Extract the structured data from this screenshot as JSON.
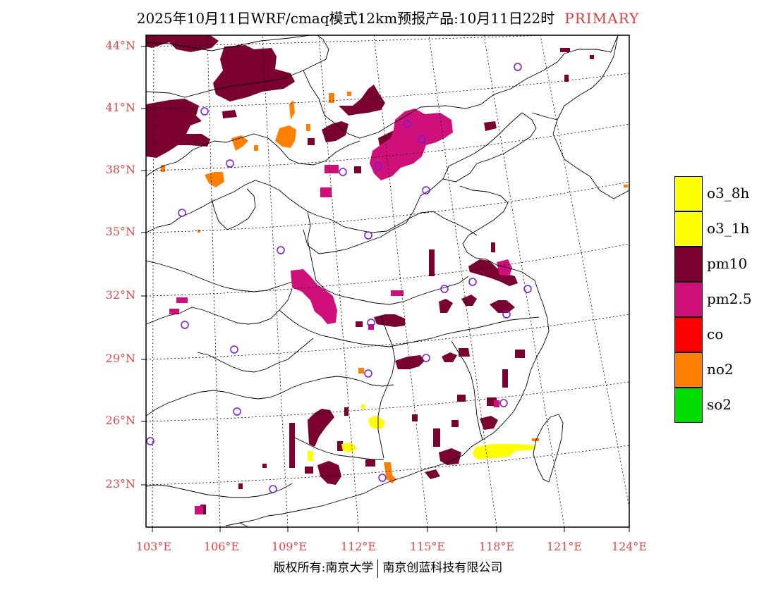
{
  "title": {
    "main": "2025年10月11日WRF/cmaq模式12km预报产品:10月11日22时",
    "tag": "PRIMARY"
  },
  "axes": {
    "lat_labels": [
      "44°N",
      "41°N",
      "38°N",
      "35°N",
      "32°N",
      "29°N",
      "26°N",
      "23°N"
    ],
    "lon_labels": [
      "103°E",
      "106°E",
      "109°E",
      "112°E",
      "115°E",
      "118°E",
      "121°E",
      "124°E"
    ]
  },
  "legend": {
    "items": [
      {
        "label": "o3_8h",
        "color": "#ffff00"
      },
      {
        "label": "o3_1h",
        "color": "#ffff00"
      },
      {
        "label": "pm10",
        "color": "#7a0030"
      },
      {
        "label": "pm2.5",
        "color": "#d0107a"
      },
      {
        "label": "co",
        "color": "#ff0000"
      },
      {
        "label": "no2",
        "color": "#ff8000"
      },
      {
        "label": "so2",
        "color": "#00dd00"
      }
    ]
  },
  "copyright": {
    "left": "版权所有:南京大学",
    "right": "南京创蓝科技有限公司"
  },
  "colors": {
    "pm10": "#7a0030",
    "pm25": "#d0107a",
    "no2": "#ff8000",
    "o3": "#ffff00",
    "site": "#7a18d8",
    "axis_label": "#e04848"
  }
}
